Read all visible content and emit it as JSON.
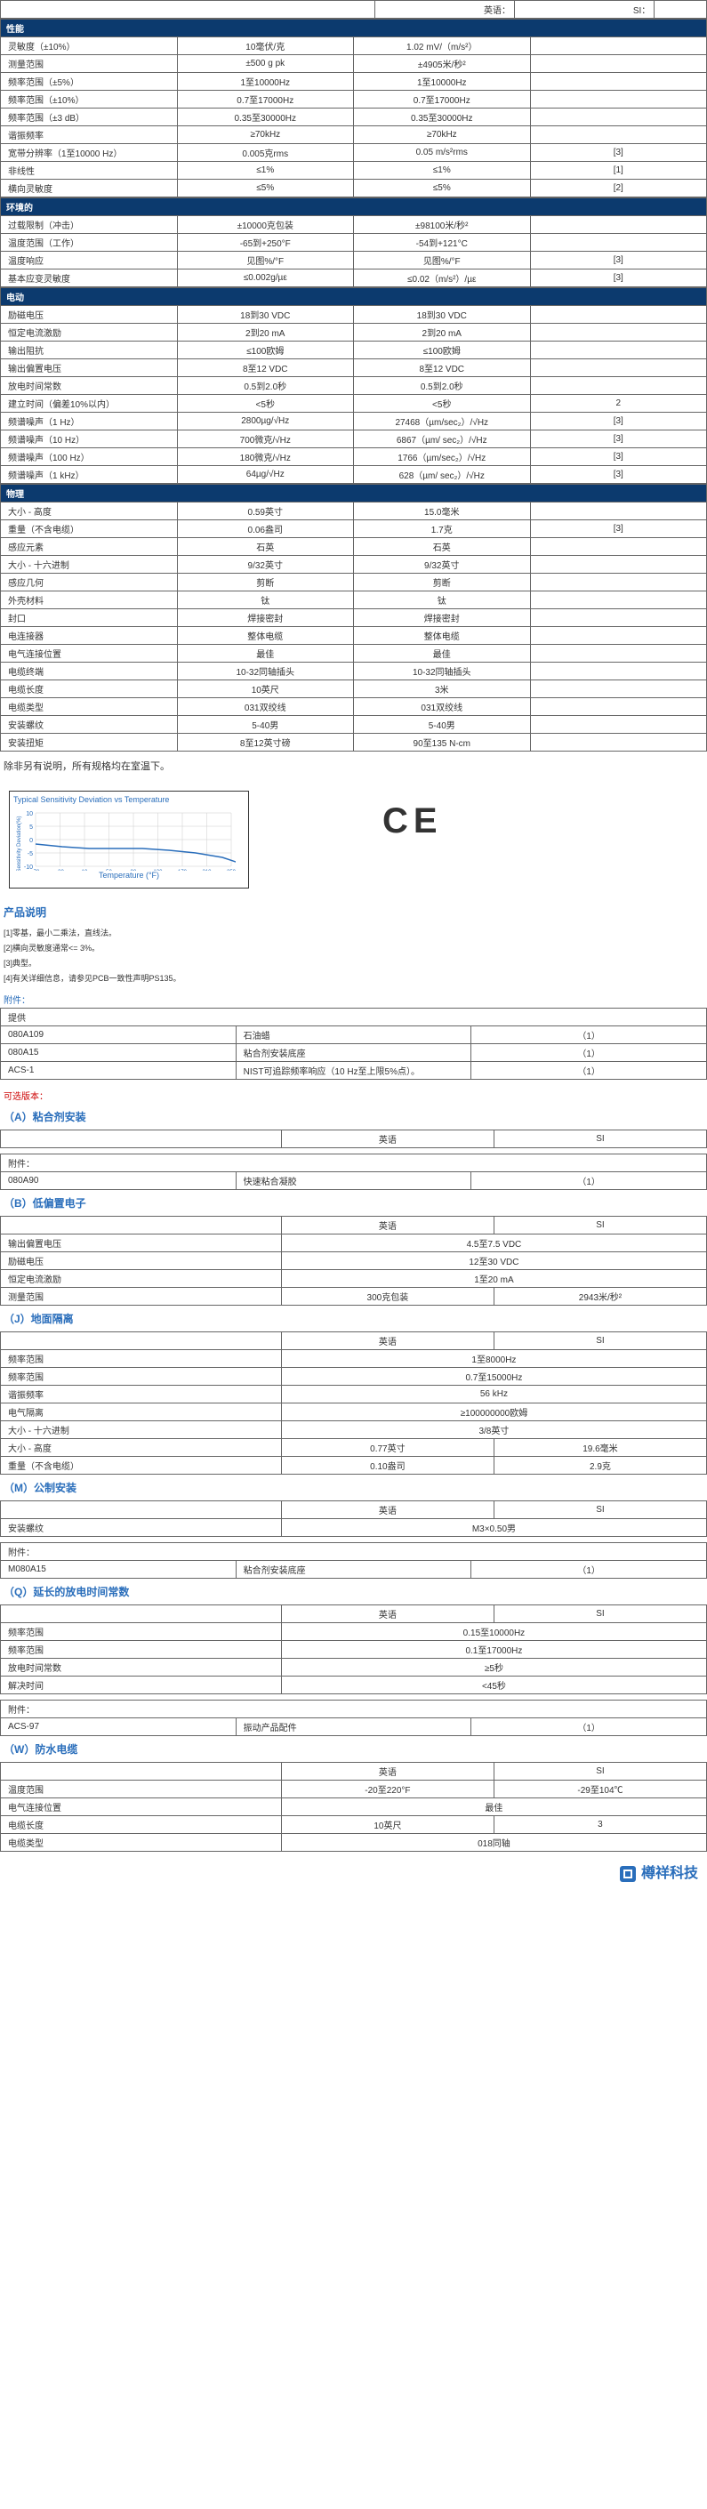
{
  "top_header": {
    "eng": "英语：",
    "si": "SI："
  },
  "sections": [
    {
      "title": "性能",
      "rows": [
        {
          "l": "灵敏度（±10%）",
          "e": "10毫伏/克",
          "s": "1.02 mV/（m/s²）",
          "n": ""
        },
        {
          "l": "测量范围",
          "e": "±500 g pk",
          "s": "±4905米/秒²",
          "n": ""
        },
        {
          "l": "频率范围（±5%）",
          "e": "1至10000Hz",
          "s": "1至10000Hz",
          "n": ""
        },
        {
          "l": "频率范围（±10%）",
          "e": "0.7至17000Hz",
          "s": "0.7至17000Hz",
          "n": ""
        },
        {
          "l": "频率范围（±3 dB）",
          "e": "0.35至30000Hz",
          "s": "0.35至30000Hz",
          "n": ""
        },
        {
          "l": "谐振频率",
          "e": "≥70kHz",
          "s": "≥70kHz",
          "n": ""
        },
        {
          "l": "宽带分辨率（1至10000 Hz）",
          "e": "0.005克rms",
          "s": "0.05 m/s²rms",
          "n": "[3]"
        },
        {
          "l": "非线性",
          "e": "≤1%",
          "s": "≤1%",
          "n": "[1]"
        },
        {
          "l": "横向灵敏度",
          "e": "≤5%",
          "s": "≤5%",
          "n": "[2]"
        }
      ]
    },
    {
      "title": "环境的",
      "rows": [
        {
          "l": "过载限制（冲击）",
          "e": "±10000克包装",
          "s": "±98100米/秒²",
          "n": ""
        },
        {
          "l": "温度范围（工作）",
          "e": "-65到+250°F",
          "s": "-54到+121°C",
          "n": ""
        },
        {
          "l": "温度响应",
          "e": "见图%/°F",
          "s": "见图%/°F",
          "n": "[3]"
        },
        {
          "l": "基本应变灵敏度",
          "e": "≤0.002g/µε",
          "s": "≤0.02（m/s²）/µε",
          "n": "[3]"
        }
      ]
    },
    {
      "title": "电动",
      "rows": [
        {
          "l": "励磁电压",
          "e": "18到30 VDC",
          "s": "18到30 VDC",
          "n": ""
        },
        {
          "l": "恒定电流激励",
          "e": "2到20 mA",
          "s": "2到20 mA",
          "n": ""
        },
        {
          "l": "输出阻抗",
          "e": "≤100欧姆",
          "s": "≤100欧姆",
          "n": ""
        },
        {
          "l": "输出偏置电压",
          "e": "8至12 VDC",
          "s": "8至12 VDC",
          "n": ""
        },
        {
          "l": "放电时间常数",
          "e": "0.5到2.0秒",
          "s": "0.5到2.0秒",
          "n": ""
        },
        {
          "l": "建立时间（偏差10%以内）",
          "e": "<5秒",
          "s": "<5秒",
          "n": "2"
        },
        {
          "l": "频谱噪声（1 Hz）",
          "e": "2800µg/√Hz",
          "s": "27468（µm/sec₂）/√Hz",
          "n": "[3]"
        },
        {
          "l": "频谱噪声（10 Hz）",
          "e": "700微克/√Hz",
          "s": "6867（µm/ sec₂）/√Hz",
          "n": "[3]"
        },
        {
          "l": "频谱噪声（100 Hz）",
          "e": "180微克/√Hz",
          "s": "1766（µm/sec₂）/√Hz",
          "n": "[3]"
        },
        {
          "l": "频谱噪声（1 kHz）",
          "e": "64µg/√Hz",
          "s": "628（µm/ sec₂）/√Hz",
          "n": "[3]"
        }
      ]
    },
    {
      "title": "物理",
      "rows": [
        {
          "l": "大小 - 高度",
          "e": "0.59英寸",
          "s": "15.0毫米",
          "n": ""
        },
        {
          "l": "重量（不含电缆）",
          "e": "0.06盎司",
          "s": "1.7克",
          "n": "[3]"
        },
        {
          "l": "感应元素",
          "e": "石英",
          "s": "石英",
          "n": ""
        },
        {
          "l": "大小 - 十六进制",
          "e": "9/32英寸",
          "s": "9/32英寸",
          "n": ""
        },
        {
          "l": "感应几何",
          "e": "剪断",
          "s": "剪断",
          "n": ""
        },
        {
          "l": "外壳材料",
          "e": "钛",
          "s": "钛",
          "n": ""
        },
        {
          "l": "封口",
          "e": "焊接密封",
          "s": "焊接密封",
          "n": ""
        },
        {
          "l": "电连接器",
          "e": "整体电缆",
          "s": "整体电缆",
          "n": ""
        },
        {
          "l": "电气连接位置",
          "e": "最佳",
          "s": "最佳",
          "n": ""
        },
        {
          "l": "电缆终端",
          "e": "10-32同轴插头",
          "s": "10-32同轴插头",
          "n": ""
        },
        {
          "l": "电缆长度",
          "e": "10英尺",
          "s": "3米",
          "n": ""
        },
        {
          "l": "电缆类型",
          "e": "031双绞线",
          "s": "031双绞线",
          "n": ""
        },
        {
          "l": "安装螺纹",
          "e": "5-40男",
          "s": "5-40男",
          "n": ""
        },
        {
          "l": "安装扭矩",
          "e": "8至12英寸磅",
          "s": "90至135 N-cm",
          "n": ""
        }
      ]
    }
  ],
  "note_text": "除非另有说明，所有规格均在室温下。",
  "chart": {
    "title": "Typical Sensitivity Deviation vs Temperature",
    "ylabel": "Sensitivity Deviation(%)",
    "xlabel": "Temperature (°F)",
    "xticks": [
      "-70",
      "-30",
      "10",
      "50",
      "90",
      "130",
      "170",
      "210",
      "250"
    ],
    "yticks": [
      "10",
      "5",
      "0",
      "-5",
      "-10"
    ],
    "line": [
      [
        0,
        45
      ],
      [
        30,
        48
      ],
      [
        60,
        50
      ],
      [
        90,
        50
      ],
      [
        120,
        50
      ],
      [
        150,
        52
      ],
      [
        180,
        55
      ],
      [
        210,
        60
      ],
      [
        240,
        70
      ]
    ]
  },
  "ce": "CE",
  "prod_desc": {
    "title": "产品说明",
    "lines": [
      "[1]零基，最小二乘法，直线法。",
      "[2]横向灵敏度通常<= 3%。",
      "[3]典型。",
      "[4]有关详细信息，请参见PCB一致性声明PS135。"
    ]
  },
  "fj1": {
    "title": "附件：",
    "sub": "提供",
    "rows": [
      {
        "c1": "080A109",
        "c2": "石油蜡",
        "c3": "（1）"
      },
      {
        "c1": "080A15",
        "c2": "粘合剂安装底座",
        "c3": "（1）"
      },
      {
        "c1": "ACS-1",
        "c2": "NIST可追踪频率响应（10 Hz至上限5%点）。",
        "c3": "（1）"
      }
    ]
  },
  "opt_title": "可选版本：",
  "blocks": [
    {
      "title": "（A）粘合剂安装",
      "head": {
        "e": "英语",
        "s": "SI"
      },
      "rows": [],
      "acc": {
        "t": "附件：",
        "r": [
          {
            "c1": "080A90",
            "c2": "快速粘合凝胶",
            "c3": "（1）"
          }
        ]
      }
    },
    {
      "title": "（B）低偏置电子",
      "head": {
        "e": "英语",
        "s": "SI"
      },
      "rows": [
        {
          "l": "输出偏置电压",
          "e": "4.5至7.5 VDC",
          "s": "",
          "span": true
        },
        {
          "l": "励磁电压",
          "e": "12至30 VDC",
          "s": "",
          "span": true
        },
        {
          "l": "恒定电流激励",
          "e": "1至20 mA",
          "s": "",
          "span": true
        },
        {
          "l": "测量范围",
          "e": "300克包装",
          "s": "2943米/秒²"
        }
      ]
    },
    {
      "title": "（J）地面隔离",
      "head": {
        "e": "英语",
        "s": "SI"
      },
      "rows": [
        {
          "l": "频率范围",
          "e": "1至8000Hz",
          "s": "",
          "span": true
        },
        {
          "l": "频率范围",
          "e": "0.7至15000Hz",
          "s": "",
          "span": true
        },
        {
          "l": "谐振频率",
          "e": "56 kHz",
          "s": "",
          "span": true
        },
        {
          "l": "电气隔离",
          "e": "≥100000000欧姆",
          "s": "",
          "span": true
        },
        {
          "l": "大小 - 十六进制",
          "e": "3/8英寸",
          "s": "",
          "span": true
        },
        {
          "l": "大小 - 高度",
          "e": "0.77英寸",
          "s": "19.6毫米"
        },
        {
          "l": "重量（不含电缆）",
          "e": "0.10盎司",
          "s": "2.9克"
        }
      ]
    },
    {
      "title": "（M）公制安装",
      "head": {
        "e": "英语",
        "s": "SI"
      },
      "rows": [
        {
          "l": "安装螺纹",
          "e": "M3×0.50男",
          "s": "",
          "span": true
        }
      ],
      "acc": {
        "t": "附件：",
        "r": [
          {
            "c1": "M080A15",
            "c2": "粘合剂安装底座",
            "c3": "（1）"
          }
        ]
      }
    },
    {
      "title": "（Q）延长的放电时间常数",
      "head": {
        "e": "英语",
        "s": "SI"
      },
      "rows": [
        {
          "l": "频率范围",
          "e": "0.15至10000Hz",
          "s": "",
          "span": true
        },
        {
          "l": "频率范围",
          "e": "0.1至17000Hz",
          "s": "",
          "span": true
        },
        {
          "l": "放电时间常数",
          "e": "≥5秒",
          "s": "",
          "span": true
        },
        {
          "l": "解决时间",
          "e": "<45秒",
          "s": "",
          "span": true
        }
      ],
      "acc": {
        "t": "附件：",
        "r": [
          {
            "c1": "ACS-97",
            "c2": "振动产品配件",
            "c3": "（1）"
          }
        ]
      }
    },
    {
      "title": "（W）防水电缆",
      "head": {
        "e": "英语",
        "s": "SI"
      },
      "rows": [
        {
          "l": "温度范围",
          "e": "-20至220°F",
          "s": "-29至104℃"
        },
        {
          "l": "电气连接位置",
          "e": "最佳",
          "s": "",
          "span": true
        },
        {
          "l": "电缆长度",
          "e": "10英尺",
          "s": "3"
        },
        {
          "l": "电缆类型",
          "e": "018同轴",
          "s": "",
          "span": true
        }
      ]
    }
  ],
  "logo": "樽祥科技"
}
